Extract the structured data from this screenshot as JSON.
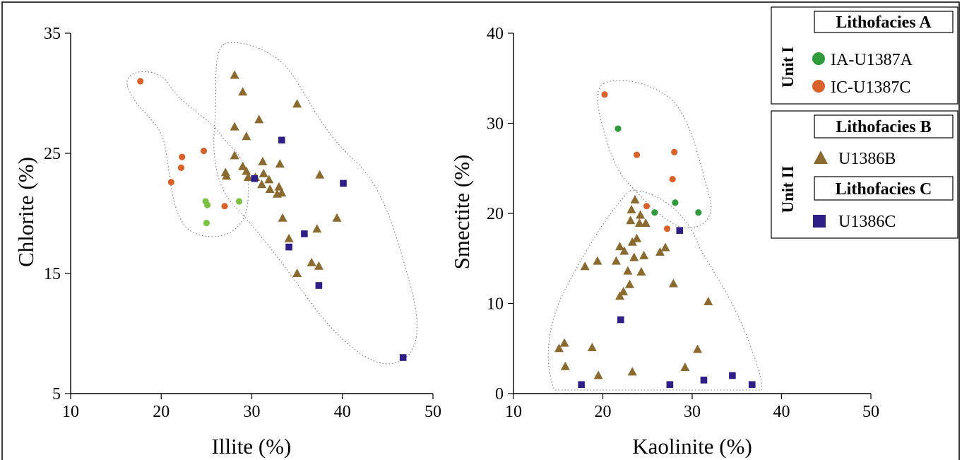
{
  "colors": {
    "ia": "#2e9b3a",
    "ic": "#d9622a",
    "b": "#8a6a2f",
    "c": "#2e1f87",
    "ia_light": "#7cc242"
  },
  "legend": {
    "lithofacies_a": "Lithofacies A",
    "unit_i": "Unit I",
    "ia_label": "IA-U1387A",
    "ic_label": "IC-U1387C",
    "lithofacies_b": "Lithofacies B",
    "unit_ii": "Unit II",
    "b_label": "U1386B",
    "lithofacies_c": "Lithofacies C",
    "c_label": "U1386C"
  },
  "chart_data": [
    {
      "type": "scatter",
      "xlabel": "Illite (%)",
      "ylabel": "Chlorite (%)",
      "xlim": [
        10,
        50
      ],
      "ylim": [
        5,
        35
      ],
      "xticks": [
        10,
        20,
        30,
        40,
        50
      ],
      "yticks": [
        5,
        15,
        25,
        35
      ],
      "grid": false,
      "series": [
        {
          "name": "IA-U1387A",
          "marker": "circle",
          "color": "#7cc242",
          "points": [
            [
              24.9,
              21.0
            ],
            [
              25.1,
              20.7
            ],
            [
              28.6,
              21.0
            ],
            [
              25.0,
              19.2
            ]
          ]
        },
        {
          "name": "IC-U1387C",
          "marker": "circle",
          "color": "#d9622a",
          "points": [
            [
              17.7,
              31.0
            ],
            [
              22.3,
              24.7
            ],
            [
              24.7,
              25.2
            ],
            [
              22.2,
              23.8
            ],
            [
              21.1,
              22.6
            ],
            [
              27.0,
              20.6
            ]
          ]
        },
        {
          "name": "U1386B",
          "marker": "triangle",
          "color": "#8a6a2f",
          "points": [
            [
              28.1,
              31.5
            ],
            [
              29.0,
              30.1
            ],
            [
              35.0,
              29.1
            ],
            [
              30.8,
              27.8
            ],
            [
              28.1,
              27.2
            ],
            [
              29.4,
              26.4
            ],
            [
              28.1,
              24.8
            ],
            [
              31.2,
              24.3
            ],
            [
              33.1,
              24.1
            ],
            [
              29.0,
              23.9
            ],
            [
              27.1,
              23.4
            ],
            [
              29.4,
              23.5
            ],
            [
              31.3,
              23.3
            ],
            [
              27.2,
              23.1
            ],
            [
              29.6,
              23.0
            ],
            [
              30.4,
              23.0
            ],
            [
              37.5,
              23.2
            ],
            [
              31.9,
              22.8
            ],
            [
              31.1,
              22.4
            ],
            [
              32.0,
              22.0
            ],
            [
              33.0,
              22.2
            ],
            [
              32.8,
              21.6
            ],
            [
              33.3,
              21.7
            ],
            [
              33.4,
              19.6
            ],
            [
              37.2,
              18.7
            ],
            [
              39.4,
              19.6
            ],
            [
              34.1,
              17.9
            ],
            [
              36.6,
              15.9
            ],
            [
              37.4,
              15.6
            ],
            [
              35.0,
              15.0
            ]
          ]
        },
        {
          "name": "U1386C",
          "marker": "square",
          "color": "#2e1f87",
          "points": [
            [
              33.3,
              26.1
            ],
            [
              30.3,
              22.9
            ],
            [
              40.1,
              22.5
            ],
            [
              35.8,
              18.3
            ],
            [
              34.1,
              17.2
            ],
            [
              37.4,
              14.0
            ],
            [
              46.7,
              8.0
            ]
          ]
        }
      ]
    },
    {
      "type": "scatter",
      "xlabel": "Kaolinite (%)",
      "ylabel": "Smectite (%)",
      "xlim": [
        10,
        50
      ],
      "ylim": [
        0,
        40
      ],
      "xticks": [
        10,
        20,
        30,
        40,
        50
      ],
      "yticks": [
        0,
        10,
        20,
        30,
        40
      ],
      "grid": false,
      "series": [
        {
          "name": "IA-U1387A",
          "marker": "circle",
          "color": "#2e9b3a",
          "points": [
            [
              21.7,
              29.4
            ],
            [
              25.8,
              20.1
            ],
            [
              28.1,
              21.2
            ],
            [
              30.7,
              20.1
            ]
          ]
        },
        {
          "name": "IC-U1387C",
          "marker": "circle",
          "color": "#d9622a",
          "points": [
            [
              20.2,
              33.2
            ],
            [
              23.8,
              26.5
            ],
            [
              28.0,
              26.8
            ],
            [
              27.8,
              23.8
            ],
            [
              24.9,
              20.8
            ],
            [
              27.2,
              18.3
            ]
          ]
        },
        {
          "name": "U1386B",
          "marker": "triangle",
          "color": "#8a6a2f",
          "points": [
            [
              23.6,
              21.5
            ],
            [
              23.2,
              20.4
            ],
            [
              24.2,
              19.8
            ],
            [
              23.1,
              19.2
            ],
            [
              24.1,
              18.9
            ],
            [
              24.8,
              18.9
            ],
            [
              23.8,
              17.2
            ],
            [
              23.3,
              16.8
            ],
            [
              21.9,
              16.3
            ],
            [
              22.4,
              15.8
            ],
            [
              27.0,
              16.2
            ],
            [
              26.4,
              15.7
            ],
            [
              24.6,
              15.3
            ],
            [
              23.5,
              15.1
            ],
            [
              21.5,
              14.7
            ],
            [
              19.4,
              14.7
            ],
            [
              18.0,
              14.1
            ],
            [
              22.8,
              13.6
            ],
            [
              24.3,
              13.5
            ],
            [
              27.9,
              12.2
            ],
            [
              23.0,
              12.1
            ],
            [
              22.3,
              11.3
            ],
            [
              21.9,
              10.8
            ],
            [
              31.8,
              10.2
            ],
            [
              15.7,
              5.6
            ],
            [
              15.1,
              5.0
            ],
            [
              18.8,
              5.1
            ],
            [
              30.6,
              4.9
            ],
            [
              15.8,
              3.0
            ],
            [
              29.2,
              2.9
            ],
            [
              23.3,
              2.4
            ],
            [
              19.5,
              2.0
            ]
          ]
        },
        {
          "name": "U1386C",
          "marker": "square",
          "color": "#2e1f87",
          "points": [
            [
              28.6,
              18.1
            ],
            [
              22.0,
              8.2
            ],
            [
              17.6,
              1.0
            ],
            [
              27.5,
              1.0
            ],
            [
              31.3,
              1.5
            ],
            [
              34.5,
              2.0
            ],
            [
              36.7,
              1.0
            ]
          ]
        }
      ]
    }
  ]
}
